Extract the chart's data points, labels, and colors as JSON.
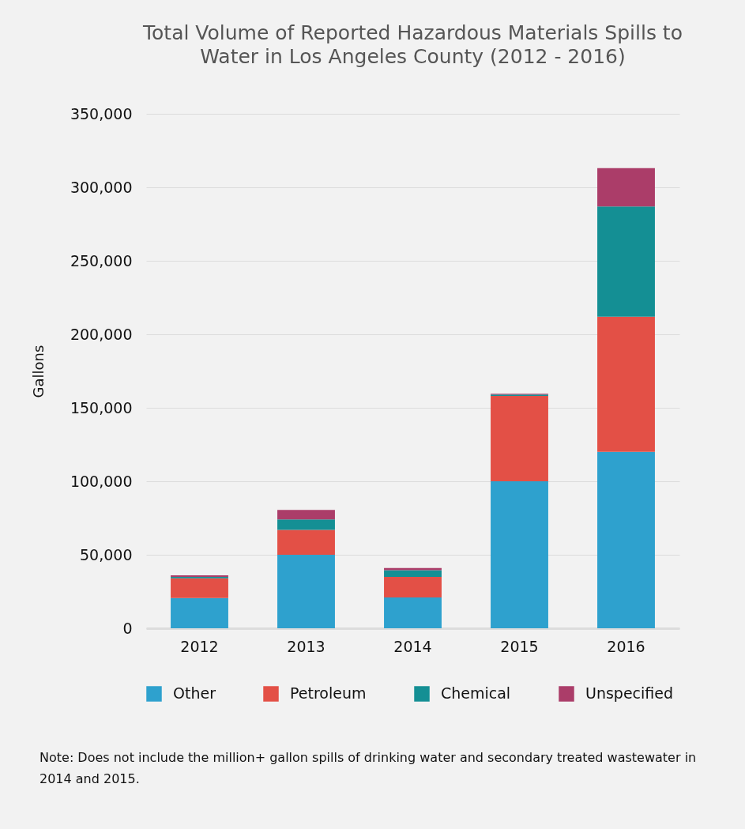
{
  "chart_data": {
    "type": "bar",
    "title": "Total Volume of Reported Hazardous Materials Spills to Water in Los Angeles County (2012 - 2016)",
    "ylabel": "Gallons",
    "categories": [
      "2012",
      "2013",
      "2014",
      "2015",
      "2016"
    ],
    "stacked": true,
    "series": [
      {
        "name": "Other",
        "color": "#2ea1ce",
        "values": [
          20500,
          50000,
          21000,
          100000,
          120000
        ]
      },
      {
        "name": "Petroleum",
        "color": "#e35046",
        "values": [
          13500,
          17000,
          14000,
          58000,
          92000
        ]
      },
      {
        "name": "Chemical",
        "color": "#148f94",
        "values": [
          1000,
          7000,
          4500,
          1000,
          75000
        ]
      },
      {
        "name": "Unspecified",
        "color": "#ab3d69",
        "values": [
          1000,
          6500,
          1500,
          500,
          26000
        ]
      }
    ],
    "ylim": [
      0,
      350000
    ],
    "yticks": [
      0,
      {
        "value": 50000,
        "label": "50,000"
      },
      {
        "value": 100000,
        "label": "100,000"
      },
      {
        "value": 150000,
        "label": "150,000"
      },
      {
        "value": 200000,
        "label": "200,000"
      },
      {
        "value": 250000,
        "label": "250,000"
      },
      {
        "value": 300000,
        "label": "300,000"
      },
      {
        "value": 350000,
        "label": "350,000"
      }
    ],
    "grid": "y",
    "legend": "bottom",
    "annotations": [
      "Note: Does not include the million+ gallon spills of drinking water and secondary treated wastewater in 2014 and 2015."
    ]
  }
}
